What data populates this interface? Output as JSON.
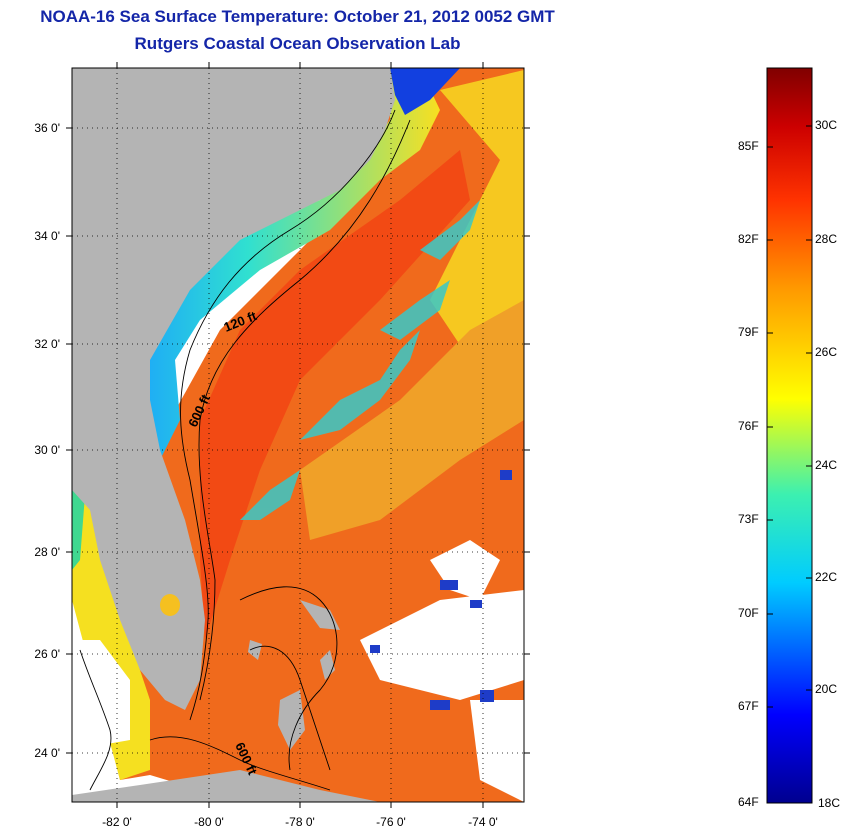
{
  "title": "NOAA-16 Sea Surface Temperature:  October 21, 2012 0052 GMT",
  "subtitle": "Rutgers Coastal Ocean Observation Lab",
  "map": {
    "lat_labels": [
      "36 0'",
      "34 0'",
      "32 0'",
      "30 0'",
      "28 0'",
      "26 0'",
      "24 0'"
    ],
    "lon_labels": [
      "-82 0'",
      "-80 0'",
      "-78 0'",
      "-76 0'",
      "-74 0'"
    ],
    "contour_labels": [
      "120 ft",
      "600 ft",
      "600 ft"
    ],
    "colors": {
      "land": "#b4b4b4",
      "water_warm": "#f0541a",
      "water_cool": "#2ad0d8",
      "no_data": "#ffffff",
      "contour": "#000000",
      "title": "#1426a8"
    }
  },
  "colorbar": {
    "fahrenheit": [
      "85F",
      "82F",
      "79F",
      "76F",
      "73F",
      "70F",
      "67F",
      "64F"
    ],
    "celsius": [
      "30C",
      "28C",
      "26C",
      "24C",
      "22C",
      "20C",
      "18C"
    ]
  }
}
